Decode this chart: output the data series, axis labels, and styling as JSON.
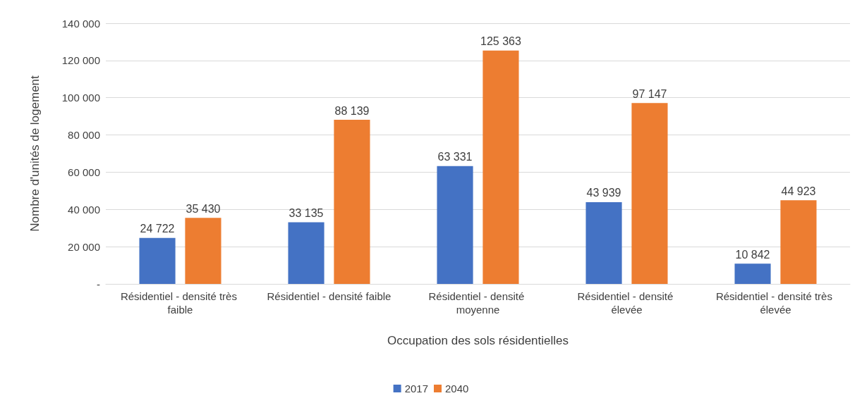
{
  "chart_data": {
    "type": "bar",
    "xlabel": "Occupation des sols résidentielles",
    "ylabel": "Nombre d'unités de logement",
    "categories": [
      "Résidentiel - densité très faible",
      "Résidentiel - densité faible",
      "Résidentiel - densité moyenne",
      "Résidentiel - densité élevée",
      "Résidentiel - densité très élevée"
    ],
    "series": [
      {
        "name": "2017",
        "color": "#4472c4",
        "values": [
          24722,
          33135,
          63331,
          43939,
          10842
        ],
        "value_labels": [
          "24 722",
          "33 135",
          "63 331",
          "43 939",
          "10 842"
        ]
      },
      {
        "name": "2040",
        "color": "#ed7d31",
        "values": [
          35430,
          88139,
          125363,
          97147,
          44923
        ],
        "value_labels": [
          "35 430",
          "88 139",
          "125 363",
          "97 147",
          "44 923"
        ]
      }
    ],
    "ylim": [
      0,
      140000
    ],
    "yticks": [
      {
        "value": 0,
        "label": "-"
      },
      {
        "value": 20000,
        "label": "20 000"
      },
      {
        "value": 40000,
        "label": "40 000"
      },
      {
        "value": 60000,
        "label": "60 000"
      },
      {
        "value": 80000,
        "label": "80 000"
      },
      {
        "value": 100000,
        "label": "100 000"
      },
      {
        "value": 120000,
        "label": "120 000"
      },
      {
        "value": 140000,
        "label": "140 000"
      }
    ],
    "grid": "y",
    "legend": "bottom"
  }
}
